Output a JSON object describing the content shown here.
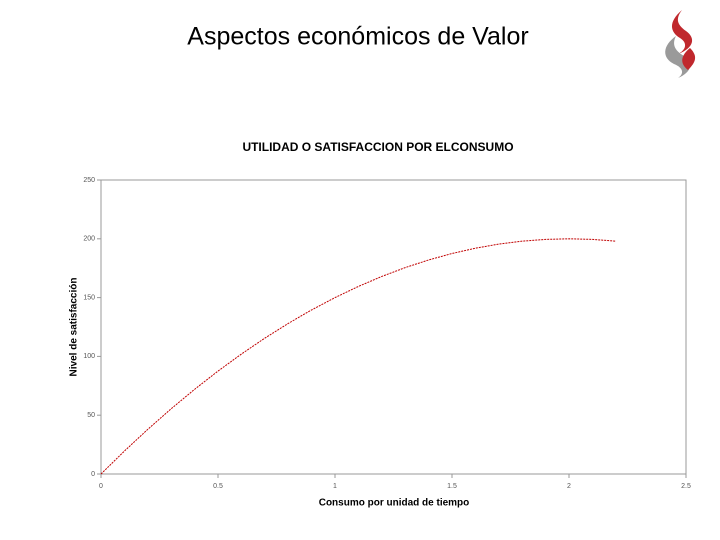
{
  "slide": {
    "title": "Aspectos económicos de Valor"
  },
  "chart_data": {
    "type": "line",
    "title": "UTILIDAD O SATISFACCION POR ELCONSUMO",
    "x_label": "Consumo por unidad de tiempo",
    "y_label": "Nivel de satisfacción",
    "x": [
      0,
      0.1,
      0.2,
      0.3,
      0.4,
      0.5,
      0.6,
      0.7,
      0.8,
      0.9,
      1,
      1.1,
      1.2,
      1.3,
      1.4,
      1.5,
      1.6,
      1.7,
      1.8,
      1.9,
      2,
      2.1,
      2.2
    ],
    "values": [
      0,
      19.5,
      38,
      55.5,
      72,
      87.5,
      102,
      115.5,
      128,
      139.5,
      150,
      159.5,
      168,
      175.5,
      182,
      187.5,
      192,
      195.5,
      198,
      199.5,
      200,
      199.5,
      198
    ],
    "color": "#c00000",
    "xlim": [
      0,
      2.5
    ],
    "xticks": [
      0,
      0.5,
      1,
      1.5,
      2,
      2.5
    ],
    "ylim": [
      0,
      250
    ],
    "yticks": [
      0,
      50,
      100,
      150,
      200,
      250
    ],
    "grid": false
  }
}
